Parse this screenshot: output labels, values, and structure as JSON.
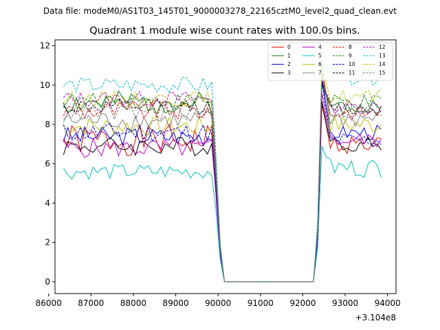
{
  "suptitle": "Data file: modeM0/AS1T03_145T01_9000003278_22165cztM0_level2_quad_clean.evt",
  "chart_data": {
    "type": "line",
    "title": "Quadrant 1 module wise count rates with 100.0s bins.",
    "xlabel": "",
    "ylabel": "",
    "x_offset_label": "+3.104e8",
    "xlim": [
      86150,
      94200
    ],
    "ylim": [
      -0.6,
      12.3
    ],
    "xticks": [
      86000,
      87000,
      88000,
      89000,
      90000,
      91000,
      92000,
      93000,
      94000
    ],
    "xtick_labels": [
      "86000",
      "87000",
      "88000",
      "89000",
      "90000",
      "91000",
      "92000",
      "93000",
      "94000"
    ],
    "yticks": [
      0,
      2,
      4,
      6,
      8,
      10,
      12
    ],
    "ytick_labels": [
      "0",
      "2",
      "4",
      "6",
      "8",
      "10",
      "12"
    ],
    "legend_position": "top-right",
    "x_segments": [
      {
        "start": 86350,
        "step": 100,
        "count": 38
      },
      {
        "start": 92350,
        "step": 100,
        "count": 16
      }
    ],
    "gap_x": [
      90150,
      90250,
      90350,
      90450,
      90550,
      90650,
      90750,
      90850,
      90950,
      91050,
      91150,
      91250,
      91350,
      91450,
      91550,
      91650,
      91750,
      91850,
      91950,
      92050,
      92150,
      92250
    ],
    "gap_value": 0,
    "series": [
      {
        "name": "0",
        "color": "#e00000",
        "dash": false,
        "base1": 7.2,
        "amp1": 0.8,
        "base2": 7.0,
        "amp2": 0.5,
        "peak": 9.0,
        "seed": 1
      },
      {
        "name": "1",
        "color": "#007f00",
        "dash": false,
        "base1": 9.1,
        "amp1": 0.6,
        "base2": 9.0,
        "amp2": 0.4,
        "peak": 10.2,
        "seed": 2
      },
      {
        "name": "2",
        "color": "#0000e0",
        "dash": false,
        "base1": 7.4,
        "amp1": 0.5,
        "base2": 7.6,
        "amp2": 0.4,
        "peak": 10.4,
        "seed": 3
      },
      {
        "name": "3",
        "color": "#000000",
        "dash": false,
        "base1": 6.9,
        "amp1": 0.5,
        "base2": 7.0,
        "amp2": 0.4,
        "peak": 9.2,
        "seed": 4
      },
      {
        "name": "4",
        "color": "#bf00bf",
        "dash": false,
        "base1": 6.8,
        "amp1": 0.5,
        "base2": 7.2,
        "amp2": 0.4,
        "peak": 9.6,
        "seed": 5
      },
      {
        "name": "5",
        "color": "#00bfbf",
        "dash": false,
        "base1": 5.6,
        "amp1": 0.4,
        "base2": 5.8,
        "amp2": 0.5,
        "peak": 6.9,
        "seed": 6
      },
      {
        "name": "6",
        "color": "#bfbf00",
        "dash": false,
        "base1": 7.9,
        "amp1": 0.5,
        "base2": 8.0,
        "amp2": 0.5,
        "peak": 11.2,
        "seed": 7
      },
      {
        "name": "7",
        "color": "#7f7f7f",
        "dash": false,
        "base1": 8.2,
        "amp1": 0.5,
        "base2": 8.3,
        "amp2": 0.5,
        "peak": 10.8,
        "seed": 8
      },
      {
        "name": "8",
        "color": "#e00000",
        "dash": true,
        "base1": 8.7,
        "amp1": 0.5,
        "base2": 8.6,
        "amp2": 0.4,
        "peak": 10.6,
        "seed": 9
      },
      {
        "name": "9",
        "color": "#007f00",
        "dash": true,
        "base1": 9.2,
        "amp1": 0.4,
        "base2": 9.1,
        "amp2": 0.4,
        "peak": 10.0,
        "seed": 10
      },
      {
        "name": "10",
        "color": "#0000e0",
        "dash": true,
        "base1": 7.6,
        "amp1": 0.5,
        "base2": 7.2,
        "amp2": 0.4,
        "peak": 10.2,
        "seed": 11
      },
      {
        "name": "11",
        "color": "#000000",
        "dash": true,
        "base1": 8.9,
        "amp1": 0.4,
        "base2": 8.8,
        "amp2": 0.4,
        "peak": 10.1,
        "seed": 12
      },
      {
        "name": "12",
        "color": "#bf00bf",
        "dash": true,
        "base1": 9.3,
        "amp1": 0.4,
        "base2": 8.9,
        "amp2": 0.4,
        "peak": 10.3,
        "seed": 13
      },
      {
        "name": "13",
        "color": "#00bfbf",
        "dash": true,
        "base1": 10.0,
        "amp1": 0.4,
        "base2": 10.4,
        "amp2": 0.4,
        "peak": 11.1,
        "seed": 14
      },
      {
        "name": "14",
        "color": "#bfbf00",
        "dash": true,
        "base1": 9.3,
        "amp1": 0.4,
        "base2": 9.4,
        "amp2": 0.4,
        "peak": 11.0,
        "seed": 15
      },
      {
        "name": "15",
        "color": "#7f7f7f",
        "dash": true,
        "base1": 8.6,
        "amp1": 0.4,
        "base2": 8.7,
        "amp2": 0.4,
        "peak": 10.4,
        "seed": 16
      }
    ]
  }
}
